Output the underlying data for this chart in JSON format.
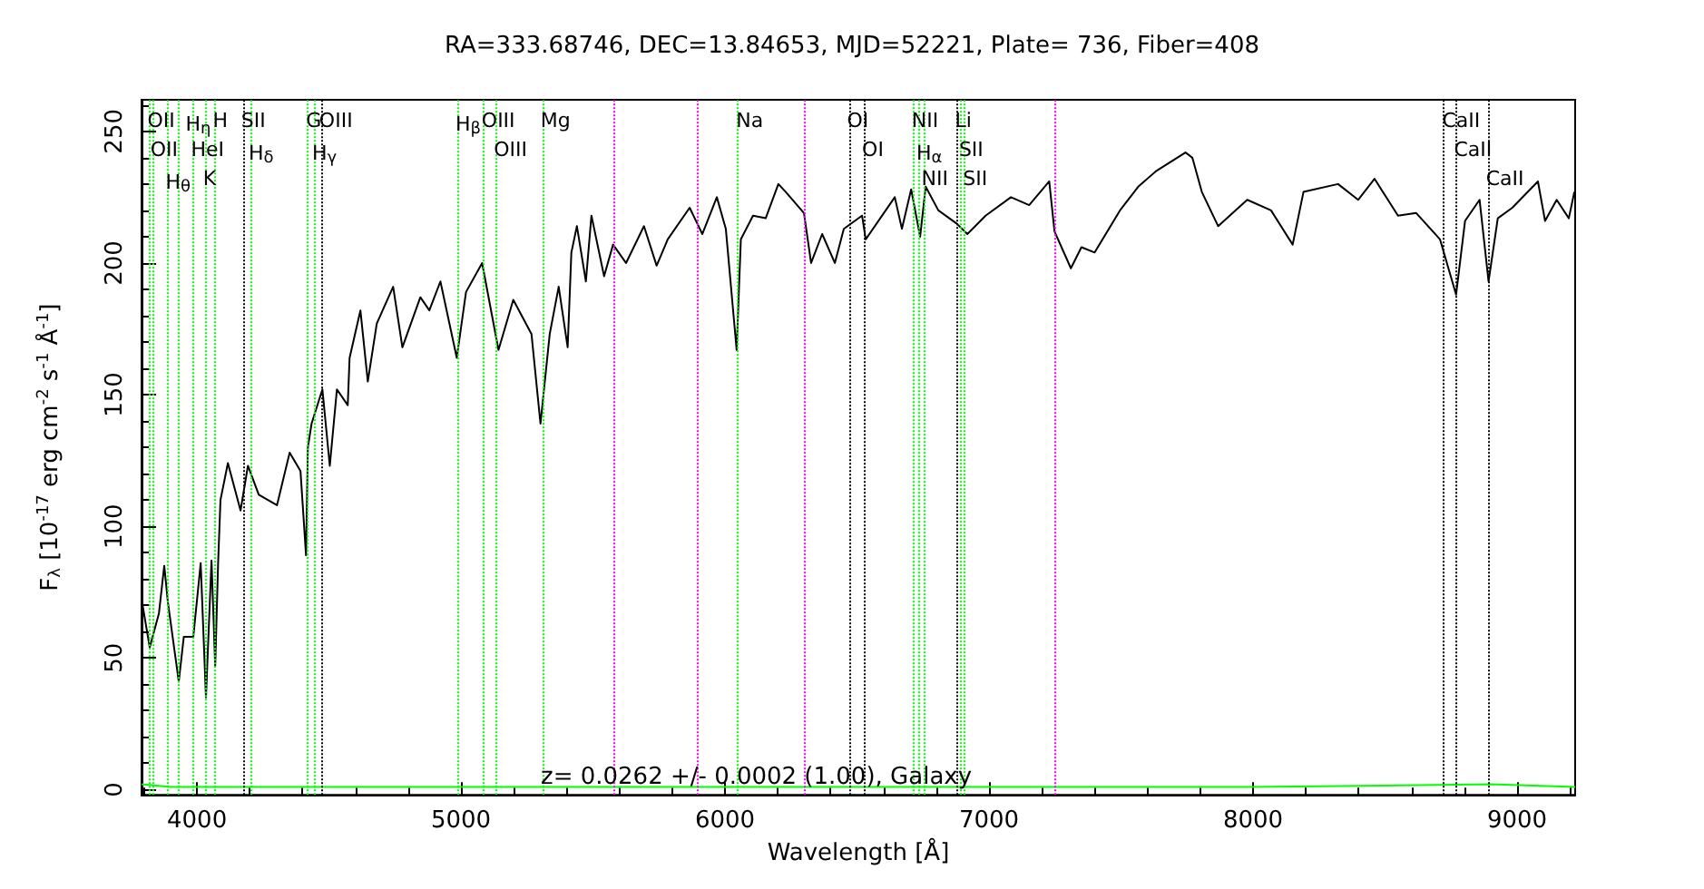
{
  "chart_data": {
    "type": "line",
    "title": "RA=333.68746, DEC=13.84653, MJD=52221, Plate= 736, Fiber=408",
    "xlabel": "Wavelength [Å]",
    "ylabel": "F$_{λ}$ [10$^{-17}$ erg cm$^{-2}$ s$^{-1}$ Å$^{-1}$]",
    "annotations": [
      "z= 0.0262 +/- 0.0002 (1.00), Galaxy"
    ],
    "xlim": [
      3790,
      9220
    ],
    "xticks": [
      4000,
      5000,
      6000,
      7000,
      8000,
      9000
    ],
    "ylim": [
      -2,
      262
    ],
    "yticks": [
      0,
      50,
      100,
      150,
      200,
      250
    ],
    "grid": false,
    "marker": "none",
    "line_style": "solid",
    "series": [
      {
        "color": "#000000",
        "x": [
          3794,
          3821,
          3856,
          3876,
          3890,
          3931,
          3950,
          3986,
          4014,
          4034,
          4055,
          4069,
          4080,
          4089,
          4117,
          4165,
          4193,
          4234,
          4303,
          4351,
          4392,
          4413,
          4420,
          4434,
          4475,
          4503,
          4530,
          4571,
          4578,
          4619,
          4647,
          4681,
          4743,
          4778,
          4846,
          4880,
          4922,
          4984,
          5019,
          5080,
          5142,
          5198,
          5267,
          5301,
          5336,
          5370,
          5404,
          5418,
          5439,
          5473,
          5494,
          5542,
          5576,
          5625,
          5693,
          5741,
          5783,
          5866,
          5914,
          5969,
          6003,
          6044,
          6060,
          6106,
          6154,
          6202,
          6230,
          6299,
          6326,
          6368,
          6416,
          6450,
          6519,
          6533,
          6643,
          6670,
          6705,
          6739,
          6760,
          6808,
          6877,
          6918,
          6987,
          7083,
          7152,
          7228,
          7248,
          7310,
          7350,
          7400,
          7496,
          7565,
          7634,
          7744,
          7770,
          7806,
          7868,
          7978,
          8068,
          8150,
          8191,
          8322,
          8398,
          8460,
          8549,
          8618,
          8708,
          8769,
          8803,
          8858,
          8892,
          8927,
          8982,
          9079,
          9106,
          9150,
          9196,
          9217
        ],
        "values": [
          70,
          54,
          67,
          85,
          71,
          41,
          58,
          58,
          86,
          35,
          87,
          47,
          86,
          110,
          124,
          106,
          123,
          112,
          108,
          128,
          121,
          89,
          130,
          139,
          152,
          123,
          152,
          146,
          164,
          182,
          155,
          177,
          191,
          168,
          187,
          182,
          193,
          164,
          189,
          200,
          167,
          186,
          173,
          139,
          173,
          191,
          168,
          204,
          214,
          193,
          218,
          195,
          207,
          200,
          214,
          199,
          209,
          221,
          211,
          225,
          213,
          167,
          209,
          218,
          217,
          230,
          227,
          219,
          200,
          211,
          200,
          213,
          218,
          209,
          225,
          213,
          228,
          210,
          229,
          220,
          215,
          211,
          218,
          225,
          222,
          231,
          212,
          198,
          206,
          204,
          220,
          229,
          235,
          242,
          240,
          227,
          214,
          224,
          220,
          207,
          227,
          230,
          224,
          232,
          218,
          219,
          209,
          188,
          216,
          224,
          193,
          217,
          221,
          231,
          216,
          224,
          217,
          227
        ]
      },
      {
        "color": "#00ff00",
        "x": [
          3790,
          3900,
          4000,
          5000,
          6000,
          7000,
          8000,
          8900,
          9220
        ],
        "values": [
          2,
          1,
          1,
          1,
          1,
          1,
          1,
          2,
          1
        ]
      }
    ],
    "ref_lines": [
      {
        "axis": "x",
        "value": 3819,
        "label": "OII",
        "color": "#00ff00",
        "line_style": "dotted"
      },
      {
        "axis": "x",
        "value": 3830,
        "label": "OII",
        "color": "#00ff00",
        "line_style": "dotted"
      },
      {
        "axis": "x",
        "value": 3888,
        "label": "H$_{θ}$",
        "color": "#00ff00",
        "line_style": "dotted"
      },
      {
        "axis": "x",
        "value": 3929,
        "label": "H$_{η}$",
        "color": "#00ff00",
        "line_style": "dotted"
      },
      {
        "axis": "x",
        "value": 3984,
        "label": "HeI",
        "color": "#00ff00",
        "line_style": "dotted"
      },
      {
        "axis": "x",
        "value": 4030,
        "label": "K",
        "color": "#00ff00",
        "line_style": "dotted"
      },
      {
        "axis": "x",
        "value": 4067,
        "label": "H",
        "color": "#00ff00",
        "line_style": "dotted"
      },
      {
        "axis": "x",
        "value": 4174,
        "label": "SII",
        "color": "#000000",
        "line_style": "dotted"
      },
      {
        "axis": "x",
        "value": 4202,
        "label": "H$_{δ}$",
        "color": "#00ff00",
        "line_style": "dotted"
      },
      {
        "axis": "x",
        "value": 4420,
        "label": "G",
        "color": "#00ff00",
        "line_style": "dotted"
      },
      {
        "axis": "x",
        "value": 4443,
        "label": "H$_{γ}$",
        "color": "#00ff00",
        "line_style": "dotted"
      },
      {
        "axis": "x",
        "value": 4470,
        "label": "OIII",
        "color": "#000000",
        "line_style": "dotted"
      },
      {
        "axis": "x",
        "value": 4986,
        "label": "H$_{β}$",
        "color": "#00ff00",
        "line_style": "dotted"
      },
      {
        "axis": "x",
        "value": 5085,
        "label": "OIII",
        "color": "#00ff00",
        "line_style": "dotted"
      },
      {
        "axis": "x",
        "value": 5131,
        "label": "OIII",
        "color": "#00ff00",
        "line_style": "dotted"
      },
      {
        "axis": "x",
        "value": 5308,
        "label": "Mg",
        "color": "#00ff00",
        "line_style": "dotted"
      },
      {
        "axis": "x",
        "value": 5578,
        "color": "#ff00ff",
        "line_style": "dotted"
      },
      {
        "axis": "x",
        "value": 5895,
        "color": "#ff00ff",
        "line_style": "dotted"
      },
      {
        "axis": "x",
        "value": 6049,
        "label": "Na",
        "color": "#00ff00",
        "line_style": "dotted"
      },
      {
        "axis": "x",
        "value": 6301,
        "color": "#ff00ff",
        "line_style": "dotted"
      },
      {
        "axis": "x",
        "value": 6469,
        "label": "OI",
        "color": "#000000",
        "line_style": "dotted"
      },
      {
        "axis": "x",
        "value": 6526,
        "label": "OI",
        "color": "#000000",
        "line_style": "dotted"
      },
      {
        "axis": "x",
        "value": 6714,
        "label": "NII",
        "color": "#00ff00",
        "line_style": "dotted"
      },
      {
        "axis": "x",
        "value": 6732,
        "label": "H$_{α}$",
        "color": "#00ff00",
        "line_style": "dotted"
      },
      {
        "axis": "x",
        "value": 6751,
        "label": "NII",
        "color": "#00ff00",
        "line_style": "dotted"
      },
      {
        "axis": "x",
        "value": 6878,
        "label": "Li",
        "color": "#000000",
        "line_style": "dotted"
      },
      {
        "axis": "x",
        "value": 6893,
        "label": "SII",
        "color": "#00ff00",
        "line_style": "dotted"
      },
      {
        "axis": "x",
        "value": 6908,
        "label": "SII",
        "color": "#00ff00",
        "line_style": "dotted"
      },
      {
        "axis": "x",
        "value": 7246,
        "color": "#ff00ff",
        "line_style": "dotted"
      },
      {
        "axis": "x",
        "value": 8723,
        "label": "CaII",
        "color": "#000000",
        "line_style": "dotted"
      },
      {
        "axis": "x",
        "value": 8768,
        "label": "CaII",
        "color": "#000000",
        "line_style": "dotted"
      },
      {
        "axis": "x",
        "value": 8889,
        "label": "CaII",
        "color": "#000000",
        "line_style": "dotted"
      }
    ]
  }
}
